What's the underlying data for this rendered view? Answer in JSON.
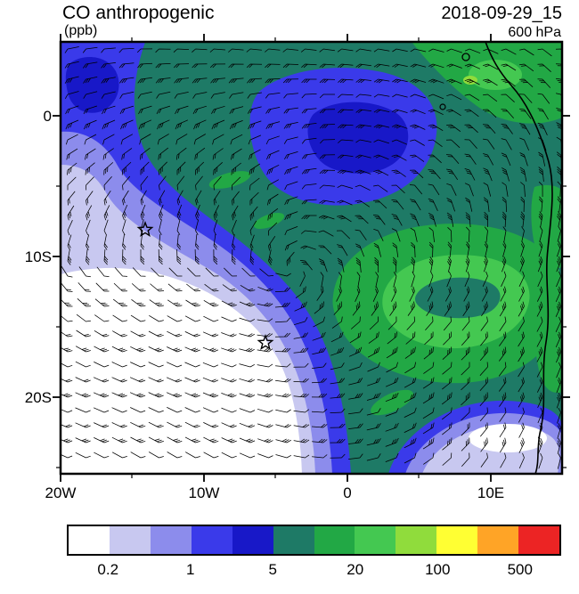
{
  "header": {
    "title": "CO anthropogenic",
    "units": "(ppb)",
    "datetime": "2018-09-29_15",
    "level": "600 hPa"
  },
  "axes": {
    "x_ticks": [
      "20W",
      "10W",
      "0",
      "10E"
    ],
    "y_ticks": [
      "0",
      "10S",
      "20S"
    ]
  },
  "colorbar": {
    "colors": [
      "#FFFFFF",
      "#C8C8F0",
      "#8C8CEC",
      "#3A3AEA",
      "#1818C8",
      "#1E7A66",
      "#22A845",
      "#44C851",
      "#90DC3C",
      "#FFFF33",
      "#FFA426",
      "#EC2424"
    ],
    "tick_labels": [
      "0.2",
      "1",
      "5",
      "20",
      "100",
      "500"
    ]
  },
  "chart_data": {
    "type": "heatmap",
    "title": "CO anthropogenic",
    "units": "ppb",
    "pressure_level": "600 hPa",
    "valid_time": "2018-09-29_15",
    "x_axis": {
      "tick_labels": [
        "20W",
        "10W",
        "0",
        "10E"
      ],
      "range": [
        "20W",
        "15E"
      ]
    },
    "y_axis": {
      "tick_labels": [
        "0",
        "10S",
        "20S"
      ],
      "range": [
        "5N",
        "25S"
      ]
    },
    "contour_levels": [
      0.2,
      0.5,
      1,
      2,
      5,
      10,
      20,
      50,
      100,
      200,
      500
    ],
    "labeled_levels": [
      0.2,
      1,
      5,
      20,
      100,
      500
    ],
    "fill_colors": [
      "#FFFFFF",
      "#C8C8F0",
      "#8C8CEC",
      "#3A3AEA",
      "#1818C8",
      "#1E7A66",
      "#22A845",
      "#44C851",
      "#90DC3C",
      "#FFFF33",
      "#FFA426",
      "#EC2424"
    ],
    "legend_position": "bottom horizontal colorbar",
    "overlays": {
      "wind_barbs": true,
      "coastline": "African west coast along right side",
      "star_markers_latlon": [
        [
          "8S",
          "14W"
        ],
        [
          "16S",
          "6W"
        ]
      ]
    },
    "field_summary": [
      {
        "region": "southwest quadrant of map (south of ~10S, west of ~5W)",
        "value_ppb": "< 0.2"
      },
      {
        "region": "diagonal transition band from ~0S 20W down to Angolan coast",
        "value_ppb": "0.2 - 5"
      },
      {
        "region": "background over most of tropical area and along equator",
        "value_ppb": "5 - 10"
      },
      {
        "region": "top-left corner patch and large blob near 2S 3W",
        "value_ppb": "1 - 5 (locally 2-5)"
      },
      {
        "region": "swirl between 5S-15S east of 2W and Gulf of Guinea coast",
        "value_ppb": "10 - 50"
      },
      {
        "region": "small pocket near 22S 10E off Namibian coast",
        "value_ppb": "< 1"
      }
    ]
  }
}
